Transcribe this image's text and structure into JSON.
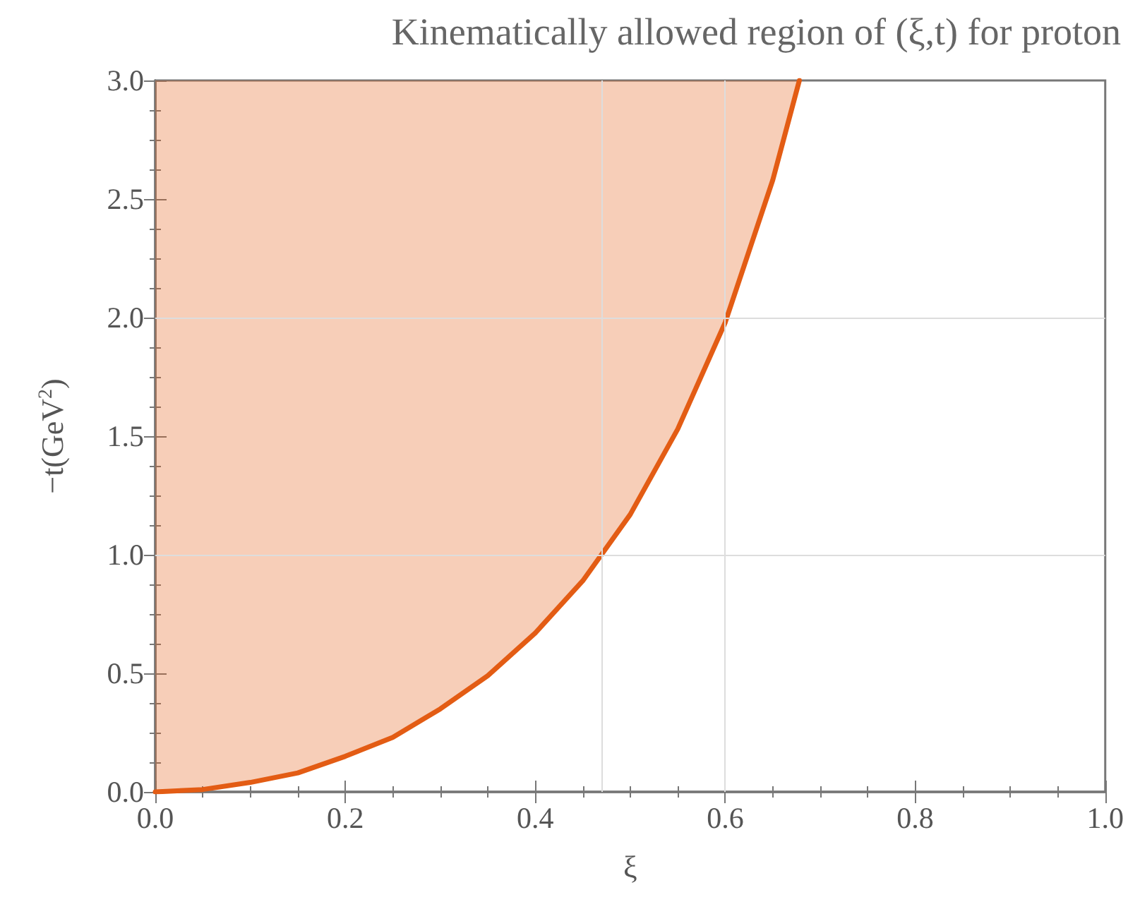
{
  "chart_data": {
    "type": "line",
    "title": "Kinematically allowed region of (ξ,t) for proton",
    "xlabel": "ξ",
    "ylabel": "−t(GeV$^{2}$)",
    "x": [
      0,
      0.05,
      0.1,
      0.15,
      0.2,
      0.25,
      0.3,
      0.35,
      0.4,
      0.45,
      0.5,
      0.55,
      0.6,
      0.65,
      0.678
    ],
    "series": [
      {
        "color": "#e35c14",
        "values": [
          0,
          0.01,
          0.04,
          0.08,
          0.15,
          0.23,
          0.35,
          0.49,
          0.67,
          0.89,
          1.17,
          1.53,
          1.98,
          2.58,
          3.0
        ],
        "lower": [
          0,
          0.01,
          0.04,
          0.08,
          0.15,
          0.23,
          0.35,
          0.49,
          0.67,
          0.89,
          1.17,
          1.53,
          1.98,
          2.58,
          3.0
        ],
        "upper": [
          3,
          3,
          3,
          3,
          3,
          3,
          3,
          3,
          3,
          3,
          3,
          3,
          3,
          3,
          3
        ]
      }
    ],
    "xlim": [
      0,
      1
    ],
    "xticks": [
      {
        "value": 0,
        "label": "0.0"
      },
      0.2,
      0.4,
      0.6,
      0.8,
      {
        "value": 1,
        "label": "1.0"
      }
    ],
    "ylim": [
      0,
      3
    ],
    "yticks": [
      {
        "value": 0,
        "label": "0.0"
      },
      0.5,
      {
        "value": 1,
        "label": "1.0"
      },
      1.5,
      {
        "value": 2,
        "label": "2.0"
      },
      2.5,
      {
        "value": 3,
        "label": "3.0"
      }
    ],
    "ref_lines": [
      {
        "axis": "x",
        "value": 0.47,
        "color": "#dddddd"
      },
      {
        "axis": "x",
        "value": 0.6,
        "color": "#dddddd"
      },
      {
        "axis": "y",
        "value": 1,
        "color": "#dddddd"
      },
      {
        "axis": "y",
        "value": 2,
        "color": "#dddddd"
      }
    ],
    "marker": "none",
    "line_style": "solid",
    "grid": false
  }
}
